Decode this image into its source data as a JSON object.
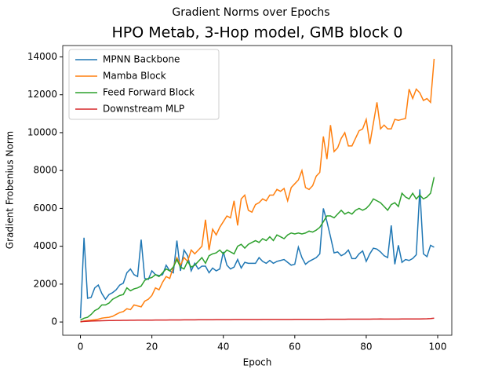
{
  "chart_data": {
    "type": "line",
    "suptitle": "Gradient Norms over Epochs",
    "title": "HPO Metab, 3-Hop model, GMB block 0",
    "xlabel": "Epoch",
    "ylabel": "Gradient Frobenius Norm",
    "x": [
      0,
      1,
      2,
      3,
      4,
      5,
      6,
      7,
      8,
      9,
      10,
      11,
      12,
      13,
      14,
      15,
      16,
      17,
      18,
      19,
      20,
      21,
      22,
      23,
      24,
      25,
      26,
      27,
      28,
      29,
      30,
      31,
      32,
      33,
      34,
      35,
      36,
      37,
      38,
      39,
      40,
      41,
      42,
      43,
      44,
      45,
      46,
      47,
      48,
      49,
      50,
      51,
      52,
      53,
      54,
      55,
      56,
      57,
      58,
      59,
      60,
      61,
      62,
      63,
      64,
      65,
      66,
      67,
      68,
      69,
      70,
      71,
      72,
      73,
      74,
      75,
      76,
      77,
      78,
      79,
      80,
      81,
      82,
      83,
      84,
      85,
      86,
      87,
      88,
      89,
      90,
      91,
      92,
      93,
      94,
      95,
      96,
      97,
      98,
      99
    ],
    "xlim": [
      -4.95,
      103.95
    ],
    "xticks": [
      0,
      20,
      40,
      60,
      80,
      100
    ],
    "ylim": [
      -700,
      14600
    ],
    "yticks": [
      0,
      2000,
      4000,
      6000,
      8000,
      10000,
      12000,
      14000
    ],
    "legend": "upper left",
    "series": [
      {
        "name": "MPNN Backbone",
        "color": "#1f77b4",
        "values": [
          200,
          4450,
          1250,
          1300,
          1800,
          1950,
          1500,
          1200,
          1450,
          1550,
          1700,
          1950,
          2050,
          2600,
          2800,
          2500,
          2400,
          4350,
          2300,
          2250,
          2700,
          2500,
          2450,
          2500,
          3000,
          2700,
          2600,
          4300,
          2700,
          3800,
          3500,
          2700,
          3100,
          2800,
          2950,
          2950,
          2600,
          2850,
          2700,
          2800,
          3700,
          3000,
          2800,
          2900,
          3300,
          2850,
          3150,
          3100,
          3100,
          3100,
          3400,
          3200,
          3100,
          3250,
          3100,
          3200,
          3250,
          3300,
          3150,
          3000,
          3050,
          3950,
          3400,
          3050,
          3200,
          3300,
          3400,
          3600,
          6000,
          5300,
          4500,
          3650,
          3700,
          3500,
          3600,
          3800,
          3350,
          3350,
          3600,
          3750,
          3200,
          3600,
          3900,
          3850,
          3700,
          3500,
          3400,
          5100,
          3050,
          4050,
          3150,
          3300,
          3250,
          3350,
          3550,
          7000,
          3600,
          3450,
          4050,
          3950
        ]
      },
      {
        "name": "Mamba Block",
        "color": "#ff7f0e",
        "values": [
          0,
          50,
          80,
          100,
          120,
          150,
          200,
          230,
          250,
          300,
          400,
          500,
          550,
          700,
          650,
          900,
          850,
          800,
          1100,
          1200,
          1400,
          1800,
          1700,
          2100,
          2400,
          2300,
          2900,
          3400,
          3000,
          3400,
          3200,
          3800,
          3600,
          3800,
          4000,
          5400,
          3800,
          4900,
          4600,
          5000,
          5300,
          5600,
          5500,
          6400,
          5100,
          6500,
          6700,
          5900,
          5800,
          6200,
          6300,
          6500,
          6400,
          6700,
          6700,
          7000,
          6900,
          7050,
          6400,
          7100,
          7300,
          7500,
          8000,
          7100,
          7000,
          7200,
          7700,
          7900,
          9800,
          8600,
          10400,
          9000,
          9200,
          9700,
          10000,
          9300,
          9300,
          9700,
          10100,
          10200,
          10700,
          9400,
          10500,
          11600,
          10200,
          10400,
          10200,
          10200,
          10700,
          10650,
          10700,
          10750,
          12300,
          11800,
          12300,
          12100,
          11700,
          11800,
          11600,
          13900
        ]
      },
      {
        "name": "Feed Forward Block",
        "color": "#2ca02c",
        "values": [
          100,
          200,
          250,
          400,
          600,
          700,
          900,
          900,
          1000,
          1200,
          1300,
          1400,
          1450,
          1800,
          1650,
          1750,
          1800,
          1900,
          2200,
          2300,
          2350,
          2500,
          2400,
          2600,
          2800,
          2700,
          2900,
          3300,
          2900,
          2800,
          3200,
          2900,
          3000,
          3200,
          3400,
          3100,
          3500,
          3600,
          3650,
          3800,
          3600,
          3800,
          3700,
          3600,
          4000,
          4100,
          3900,
          4100,
          4200,
          4300,
          4200,
          4400,
          4300,
          4500,
          4300,
          4600,
          4500,
          4400,
          4600,
          4700,
          4650,
          4700,
          4650,
          4700,
          4800,
          4750,
          4850,
          5000,
          5300,
          5600,
          5600,
          5500,
          5700,
          5900,
          5700,
          5800,
          5700,
          5900,
          6000,
          5900,
          6000,
          6200,
          6500,
          6400,
          6300,
          6100,
          5900,
          6200,
          6300,
          6100,
          6800,
          6600,
          6500,
          6800,
          6500,
          6700,
          6500,
          6600,
          6800,
          7650
        ]
      },
      {
        "name": "Downstream MLP",
        "color": "#d62728",
        "values": [
          20,
          30,
          40,
          50,
          55,
          60,
          65,
          70,
          75,
          80,
          85,
          85,
          90,
          90,
          95,
          95,
          100,
          100,
          100,
          100,
          100,
          105,
          105,
          105,
          105,
          110,
          110,
          110,
          110,
          115,
          115,
          115,
          115,
          120,
          120,
          120,
          120,
          120,
          125,
          125,
          125,
          125,
          125,
          130,
          130,
          130,
          130,
          130,
          130,
          130,
          130,
          135,
          135,
          135,
          135,
          135,
          135,
          135,
          135,
          135,
          140,
          140,
          140,
          140,
          140,
          140,
          140,
          140,
          140,
          145,
          145,
          145,
          145,
          145,
          145,
          150,
          150,
          150,
          150,
          150,
          150,
          150,
          155,
          155,
          160,
          155,
          155,
          155,
          155,
          155,
          160,
          160,
          160,
          160,
          160,
          160,
          165,
          170,
          180,
          200
        ]
      }
    ]
  }
}
